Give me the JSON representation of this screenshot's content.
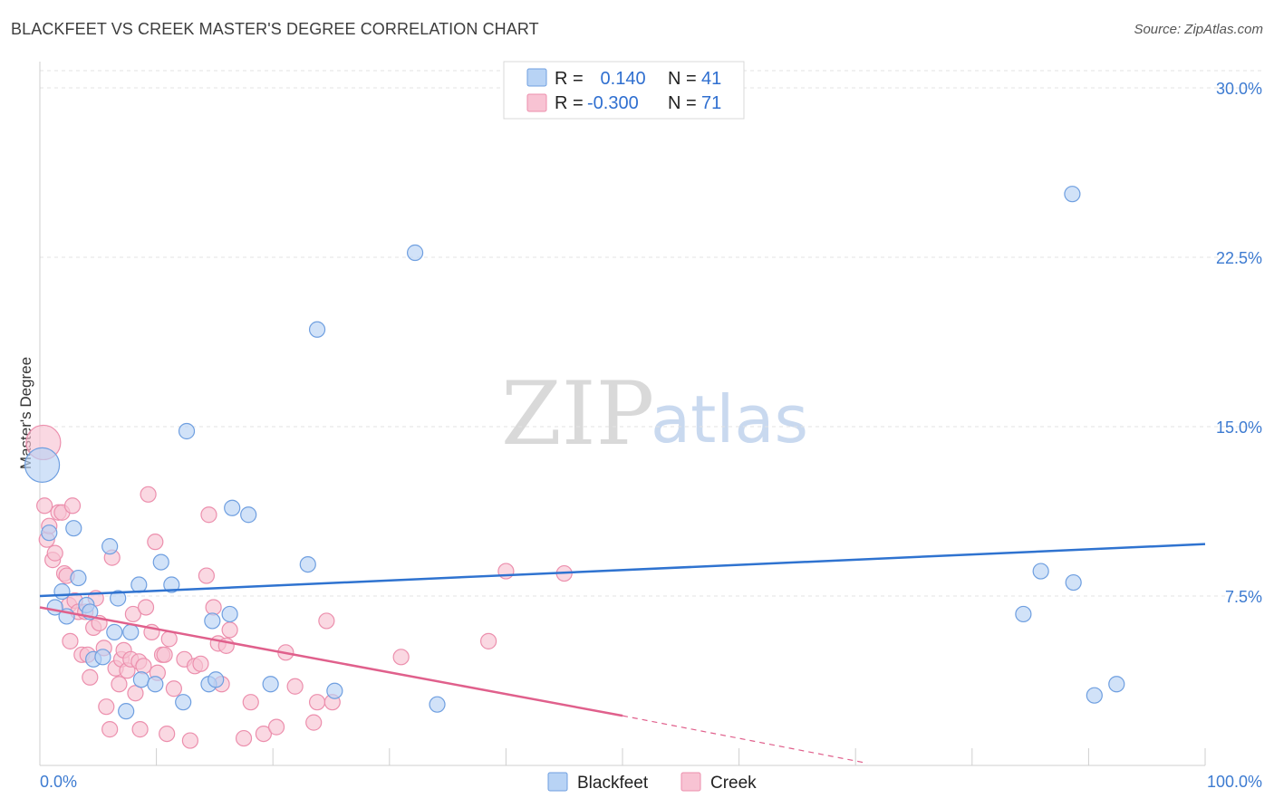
{
  "chart_data": {
    "type": "scatter",
    "title": "BLACKFEET VS CREEK MASTER'S DEGREE CORRELATION CHART",
    "source": "Source: ZipAtlas.com",
    "xlabel": "",
    "ylabel": "Master's Degree",
    "xlim": [
      0,
      100
    ],
    "ylim": [
      0,
      30
    ],
    "x_tick_labels": [
      "0.0%",
      "100.0%"
    ],
    "y_ticks": [
      {
        "value": 7.5,
        "label": "7.5%"
      },
      {
        "value": 15.0,
        "label": "15.0%"
      },
      {
        "value": 22.5,
        "label": "22.5%"
      },
      {
        "value": 30.0,
        "label": "30.0%"
      }
    ],
    "legend_top": [
      {
        "series": "Blackfeet",
        "r_label": "R =",
        "r_value": " 0.140",
        "n_label": "N =",
        "n_value": "41"
      },
      {
        "series": "Creek",
        "r_label": "R =",
        "r_value": "-0.300",
        "n_label": "N =",
        "n_value": "71"
      }
    ],
    "watermark": {
      "zip": "ZIP",
      "atlas": "atlas"
    },
    "colors": {
      "blackfeet_fill": "#b8d3f5",
      "blackfeet_stroke": "#6f9fe0",
      "blackfeet_line": "#2f73d0",
      "creek_fill": "#f8c3d3",
      "creek_stroke": "#ec8fad",
      "creek_line": "#e0608c"
    },
    "series": [
      {
        "name": "Blackfeet",
        "trend": {
          "x0": 0,
          "y0": 7.5,
          "x1": 100,
          "y1": 9.8
        },
        "points": [
          {
            "x": 0.2,
            "y": 13.3,
            "big": true
          },
          {
            "x": 0.8,
            "y": 10.3
          },
          {
            "x": 2.9,
            "y": 10.5
          },
          {
            "x": 1.3,
            "y": 7.0
          },
          {
            "x": 1.9,
            "y": 7.7
          },
          {
            "x": 2.3,
            "y": 6.6
          },
          {
            "x": 3.3,
            "y": 8.3
          },
          {
            "x": 4.0,
            "y": 7.1
          },
          {
            "x": 4.3,
            "y": 6.8
          },
          {
            "x": 4.6,
            "y": 4.7
          },
          {
            "x": 5.4,
            "y": 4.8
          },
          {
            "x": 6.0,
            "y": 9.7
          },
          {
            "x": 6.4,
            "y": 5.9
          },
          {
            "x": 6.7,
            "y": 7.4
          },
          {
            "x": 7.4,
            "y": 2.4
          },
          {
            "x": 7.8,
            "y": 5.9
          },
          {
            "x": 8.5,
            "y": 8.0
          },
          {
            "x": 8.7,
            "y": 3.8
          },
          {
            "x": 9.9,
            "y": 3.6
          },
          {
            "x": 10.4,
            "y": 9.0
          },
          {
            "x": 11.3,
            "y": 8.0
          },
          {
            "x": 12.3,
            "y": 2.8
          },
          {
            "x": 12.6,
            "y": 14.8
          },
          {
            "x": 14.5,
            "y": 3.6
          },
          {
            "x": 14.8,
            "y": 6.4
          },
          {
            "x": 15.1,
            "y": 3.8
          },
          {
            "x": 16.3,
            "y": 6.7
          },
          {
            "x": 16.5,
            "y": 11.4
          },
          {
            "x": 17.9,
            "y": 11.1
          },
          {
            "x": 19.8,
            "y": 3.6
          },
          {
            "x": 23.0,
            "y": 8.9
          },
          {
            "x": 23.8,
            "y": 19.3
          },
          {
            "x": 25.3,
            "y": 3.3
          },
          {
            "x": 32.2,
            "y": 22.7
          },
          {
            "x": 34.1,
            "y": 2.7
          },
          {
            "x": 84.4,
            "y": 6.7
          },
          {
            "x": 85.9,
            "y": 8.6
          },
          {
            "x": 88.6,
            "y": 25.3
          },
          {
            "x": 88.7,
            "y": 8.1
          },
          {
            "x": 90.5,
            "y": 3.1
          },
          {
            "x": 92.4,
            "y": 3.6
          }
        ]
      },
      {
        "name": "Creek",
        "trend": {
          "x0": 0,
          "y0": 7.0,
          "x1": 50,
          "y1": 2.2,
          "dash_x1": 71,
          "dash_y1": 0.1
        },
        "points": [
          {
            "x": 0.3,
            "y": 14.3,
            "big": true
          },
          {
            "x": 0.4,
            "y": 11.5
          },
          {
            "x": 0.6,
            "y": 10.0
          },
          {
            "x": 0.8,
            "y": 10.6
          },
          {
            "x": 1.1,
            "y": 9.1
          },
          {
            "x": 1.3,
            "y": 9.4
          },
          {
            "x": 1.6,
            "y": 11.2
          },
          {
            "x": 1.9,
            "y": 11.2
          },
          {
            "x": 2.1,
            "y": 8.5
          },
          {
            "x": 2.3,
            "y": 8.4
          },
          {
            "x": 2.5,
            "y": 7.1
          },
          {
            "x": 2.6,
            "y": 5.5
          },
          {
            "x": 2.8,
            "y": 11.5
          },
          {
            "x": 3.0,
            "y": 7.3
          },
          {
            "x": 3.3,
            "y": 6.8
          },
          {
            "x": 3.6,
            "y": 4.9
          },
          {
            "x": 3.9,
            "y": 6.8
          },
          {
            "x": 4.1,
            "y": 4.9
          },
          {
            "x": 4.3,
            "y": 3.9
          },
          {
            "x": 4.6,
            "y": 6.1
          },
          {
            "x": 4.8,
            "y": 7.4
          },
          {
            "x": 5.1,
            "y": 6.3
          },
          {
            "x": 5.5,
            "y": 5.2
          },
          {
            "x": 5.7,
            "y": 2.6
          },
          {
            "x": 6.0,
            "y": 1.6
          },
          {
            "x": 6.2,
            "y": 9.2
          },
          {
            "x": 6.5,
            "y": 4.3
          },
          {
            "x": 6.8,
            "y": 3.6
          },
          {
            "x": 7.0,
            "y": 4.7
          },
          {
            "x": 7.2,
            "y": 5.1
          },
          {
            "x": 7.5,
            "y": 4.2
          },
          {
            "x": 7.8,
            "y": 4.7
          },
          {
            "x": 8.0,
            "y": 6.7
          },
          {
            "x": 8.2,
            "y": 3.2
          },
          {
            "x": 8.5,
            "y": 4.6
          },
          {
            "x": 8.6,
            "y": 1.6
          },
          {
            "x": 8.9,
            "y": 4.4
          },
          {
            "x": 9.1,
            "y": 7.0
          },
          {
            "x": 9.3,
            "y": 12.0
          },
          {
            "x": 9.6,
            "y": 5.9
          },
          {
            "x": 9.9,
            "y": 9.9
          },
          {
            "x": 10.1,
            "y": 4.1
          },
          {
            "x": 10.5,
            "y": 4.9
          },
          {
            "x": 10.7,
            "y": 4.9
          },
          {
            "x": 10.9,
            "y": 1.4
          },
          {
            "x": 11.1,
            "y": 5.6
          },
          {
            "x": 11.5,
            "y": 3.4
          },
          {
            "x": 12.4,
            "y": 4.7
          },
          {
            "x": 12.9,
            "y": 1.1
          },
          {
            "x": 13.3,
            "y": 4.4
          },
          {
            "x": 13.8,
            "y": 4.5
          },
          {
            "x": 14.3,
            "y": 8.4
          },
          {
            "x": 14.5,
            "y": 11.1
          },
          {
            "x": 14.9,
            "y": 7.0
          },
          {
            "x": 15.3,
            "y": 5.4
          },
          {
            "x": 15.6,
            "y": 3.6
          },
          {
            "x": 16.0,
            "y": 5.3
          },
          {
            "x": 16.3,
            "y": 6.0
          },
          {
            "x": 17.5,
            "y": 1.2
          },
          {
            "x": 18.1,
            "y": 2.8
          },
          {
            "x": 19.2,
            "y": 1.4
          },
          {
            "x": 20.3,
            "y": 1.7
          },
          {
            "x": 21.1,
            "y": 5.0
          },
          {
            "x": 21.9,
            "y": 3.5
          },
          {
            "x": 23.5,
            "y": 1.9
          },
          {
            "x": 23.8,
            "y": 2.8
          },
          {
            "x": 24.6,
            "y": 6.4
          },
          {
            "x": 25.1,
            "y": 2.8
          },
          {
            "x": 31.0,
            "y": 4.8
          },
          {
            "x": 38.5,
            "y": 5.5
          },
          {
            "x": 40.0,
            "y": 8.6
          },
          {
            "x": 45.0,
            "y": 8.5
          }
        ]
      }
    ],
    "bottom_legend": [
      "Blackfeet",
      "Creek"
    ]
  }
}
